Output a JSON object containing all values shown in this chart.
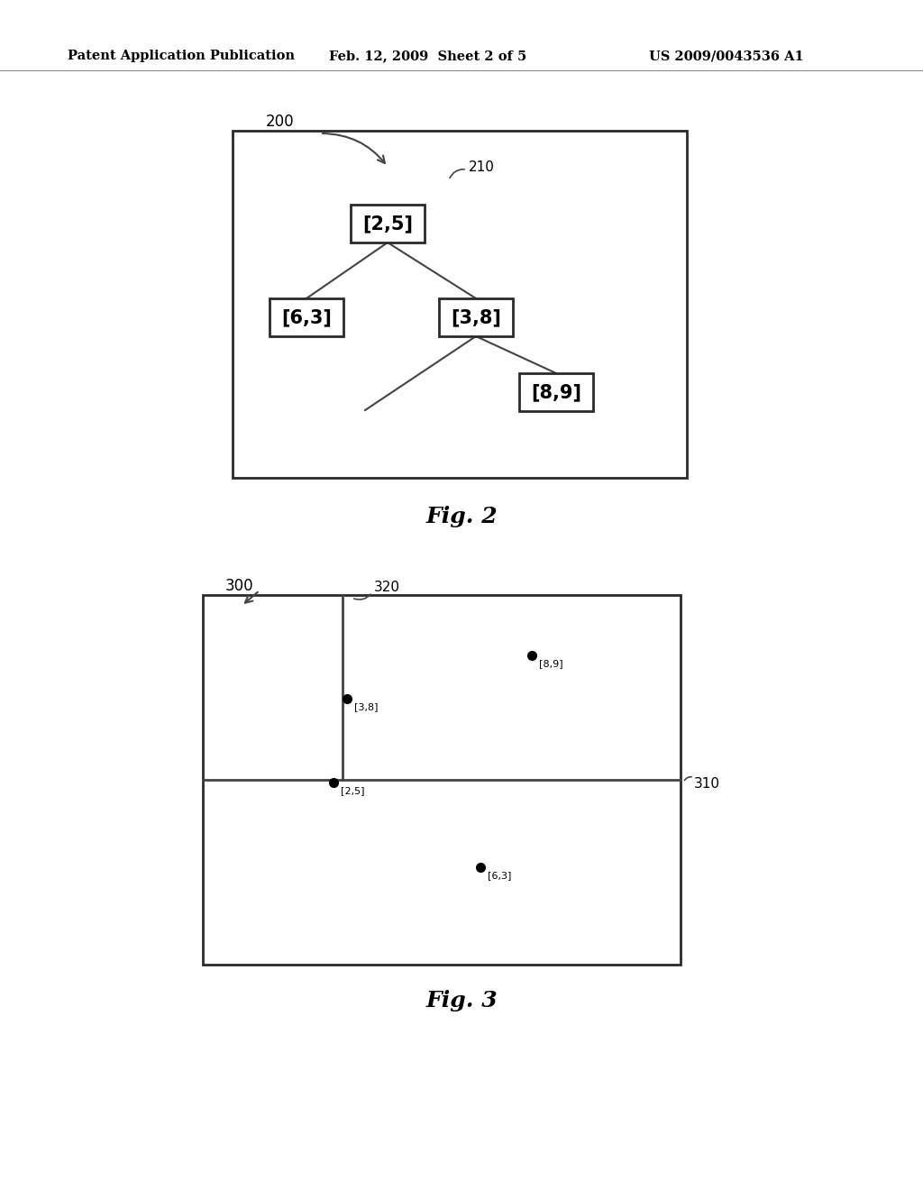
{
  "header_text": "Patent Application Publication",
  "header_date": "Feb. 12, 2009  Sheet 2 of 5",
  "header_patent": "US 2009/0043536 A1",
  "fig2_label": "200",
  "fig2_ref_label": "210",
  "fig2_caption": "Fig. 2",
  "node_root_label": "[2,5]",
  "node_left_label": "[6,3]",
  "node_right_label": "[3,8]",
  "node_child_label": "[8,9]",
  "fig3_label": "300",
  "fig3_ref320_label": "320",
  "fig3_ref310_label": "310",
  "fig3_caption": "Fig. 3",
  "dot_25_label": "[2,5]",
  "dot_38_label": "[3,8]",
  "dot_89_label": "[8,9]",
  "dot_63_label": "[6,3]",
  "bg_color": "#ffffff",
  "box_edge_color": "#2a2a2a",
  "text_color": "#000000",
  "line_color": "#444444"
}
